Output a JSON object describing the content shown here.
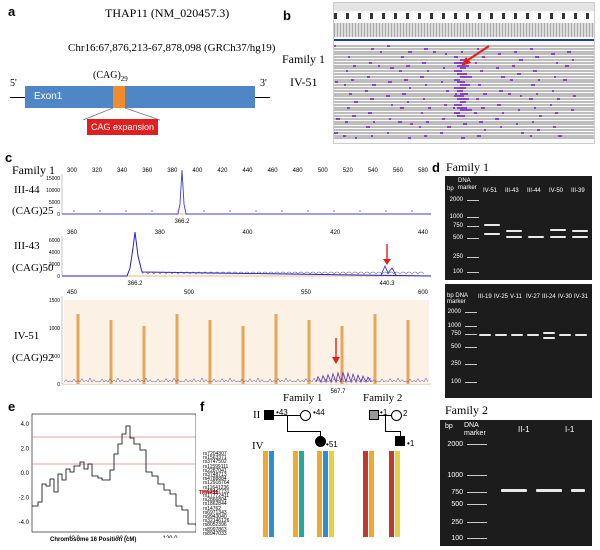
{
  "panel_a": {
    "letter": "a",
    "gene": "THAP11 (NM_020457.3)",
    "coords": "Chr16:67,876,213-67,878,098 (GRCh37/hg19)",
    "cag_base": "(CAG)",
    "cag_sub": "29",
    "five": "5'",
    "three": "3'",
    "exon": "Exon1",
    "expansion": "CAG expansion",
    "colors": {
      "exon": "#4f86c6",
      "repeat": "#f08c2a",
      "expansion": "#e02020"
    }
  },
  "panel_b": {
    "letter": "b",
    "family": "Family 1",
    "individual": "IV-51"
  },
  "panel_c": {
    "letter": "c",
    "family": "Family 1",
    "traces": [
      {
        "id": "III-44",
        "cag": "(CAG)25",
        "axis": [
          "300",
          "320",
          "340",
          "360",
          "380",
          "400",
          "420",
          "440",
          "460",
          "480",
          "500",
          "520",
          "540",
          "560",
          "580"
        ],
        "yticks": [
          "15000",
          "10000",
          "5000",
          "0"
        ],
        "peak_label": "366.2"
      },
      {
        "id": "III-43",
        "cag": "(CAG)50",
        "axis": [
          "360",
          "380",
          "400",
          "420",
          "440"
        ],
        "yticks": [
          "6000",
          "4000",
          "2000",
          "0"
        ],
        "peak_label": "366.2",
        "peak_label2": "440.3"
      },
      {
        "id": "IV-51",
        "cag": "(CAG)92",
        "axis": [
          "450",
          "500",
          "550",
          "600"
        ],
        "yticks": [
          "1500",
          "1000",
          "500",
          "0"
        ],
        "peak_label": "567.7"
      }
    ]
  },
  "panel_d": {
    "letter": "d",
    "family": "Family 1",
    "dna_marker": "DNA marker",
    "bp": "bp",
    "gel1_lanes": [
      "IV-51",
      "III-43",
      "III-44",
      "IV-50",
      "III-39"
    ],
    "gel2_lanes": [
      "III-19",
      "IV-25",
      "V-11",
      "IV-27",
      "III-24",
      "IV-30",
      "IV-31"
    ],
    "ladder": [
      "2000",
      "1000",
      "750",
      "500",
      "250",
      "100"
    ]
  },
  "panel_e": {
    "letter": "e",
    "xlabel": "Chromosome 16 Position (cM)",
    "xticks": [
      "40.0",
      "80.0",
      "120.0"
    ],
    "yticks": [
      "4.0",
      "2.0",
      "0.0",
      "-2.0",
      "-4.0"
    ]
  },
  "panel_f": {
    "letter": "f",
    "family1": "Family 1",
    "family2": "Family 2",
    "gen2": "II",
    "gen4": "IV",
    "f1_ids": [
      "43",
      "44",
      "51"
    ],
    "f2_ids": [
      "1",
      "2",
      "1"
    ],
    "gene_marker": "THAP11",
    "snps": [
      "rs7204307",
      "rs1563371",
      "rs3747502",
      "rs11599111",
      "rs2287041",
      "rs3748713",
      "rs4788884",
      "rs12918764",
      "rs11641236",
      "rs12447731",
      "rs17772411",
      "rs2866804",
      "rs1862844",
      "rs14762",
      "rs6971343",
      "rs9943040",
      "rs32146126",
      "rs8052396",
      "rs8997863",
      "rs8947033"
    ]
  },
  "panel_g": {
    "family": "Family 2",
    "bp": "bp",
    "dna_marker": "DNA marker",
    "lanes": [
      "II-1",
      "I-1"
    ],
    "ladder": [
      "2000",
      "1000",
      "750",
      "500",
      "250",
      "100"
    ]
  }
}
